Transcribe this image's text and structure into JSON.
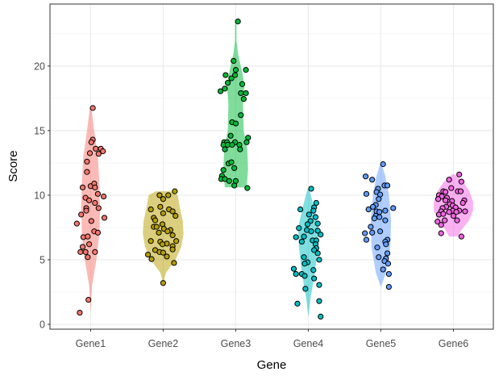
{
  "chart_data": {
    "type": "violin",
    "title": "",
    "xlabel": "Gene",
    "ylabel": "Score",
    "categories": [
      "Gene1",
      "Gene2",
      "Gene3",
      "Gene4",
      "Gene5",
      "Gene6"
    ],
    "yticks": [
      0,
      5,
      10,
      15,
      20
    ],
    "ylim": [
      -0.375,
      24.8
    ],
    "grid": true,
    "legend": "none",
    "point_color": "#000000",
    "series": [
      {
        "category": "Gene1",
        "color": "#F8766D",
        "violin": [
          [
            0.9,
            0
          ],
          [
            3,
            0.02
          ],
          [
            5,
            0.08
          ],
          [
            7,
            0.12
          ],
          [
            9,
            0.13
          ],
          [
            11,
            0.12
          ],
          [
            13,
            0.1
          ],
          [
            15,
            0.05
          ],
          [
            16.8,
            0.01
          ]
        ],
        "points": [
          [
            0.03,
            16.75
          ],
          [
            0.03,
            14.3
          ],
          [
            0.01,
            14.1
          ],
          [
            0.07,
            13.6
          ],
          [
            0.14,
            13.6
          ],
          [
            0.17,
            13.4
          ],
          [
            0.11,
            13.2
          ],
          [
            -0.01,
            13.25
          ],
          [
            -0.05,
            12.6
          ],
          [
            -0.05,
            11.8
          ],
          [
            -0.11,
            10.6
          ],
          [
            0,
            10.7
          ],
          [
            0.05,
            10.9
          ],
          [
            0.06,
            10.6
          ],
          [
            -0.07,
            9.8
          ],
          [
            -0.02,
            9.6
          ],
          [
            0.1,
            10.1
          ],
          [
            0.18,
            9.9
          ],
          [
            0.06,
            9.4
          ],
          [
            0.11,
            9.0
          ],
          [
            -0.06,
            9.0
          ],
          [
            -0.06,
            8.8
          ],
          [
            -0.13,
            8.5
          ],
          [
            -0.19,
            7.8
          ],
          [
            0.01,
            8.0
          ],
          [
            0.19,
            8.25
          ],
          [
            0.05,
            7.2
          ],
          [
            0.1,
            7.1
          ],
          [
            -0.1,
            6.75
          ],
          [
            -0.04,
            6.8
          ],
          [
            -0.02,
            6.2
          ],
          [
            -0.11,
            6.0
          ],
          [
            -0.14,
            5.6
          ],
          [
            -0.07,
            5.6
          ],
          [
            -0.04,
            5.2
          ],
          [
            0.06,
            5.6
          ],
          [
            -0.03,
            1.9
          ],
          [
            -0.15,
            0.9
          ]
        ]
      },
      {
        "category": "Gene2",
        "color": "#B79F00",
        "violin": [
          [
            3.2,
            0
          ],
          [
            4,
            0.04
          ],
          [
            5,
            0.17
          ],
          [
            6,
            0.25
          ],
          [
            7,
            0.28
          ],
          [
            8,
            0.27
          ],
          [
            9,
            0.23
          ],
          [
            10,
            0.2
          ],
          [
            10.3,
            0.1
          ]
        ],
        "points": [
          [
            0.16,
            10.3
          ],
          [
            -0.05,
            10.0
          ],
          [
            0,
            9.7
          ],
          [
            0.07,
            10.0
          ],
          [
            -0.17,
            8.9
          ],
          [
            -0.04,
            9.1
          ],
          [
            0,
            8.6
          ],
          [
            0.08,
            8.9
          ],
          [
            0.13,
            8.75
          ],
          [
            0.17,
            8.4
          ],
          [
            -0.13,
            8.25
          ],
          [
            -0.11,
            8.05
          ],
          [
            -0.01,
            7.75
          ],
          [
            -0.13,
            7.55
          ],
          [
            -0.09,
            7.55
          ],
          [
            0.01,
            7.4
          ],
          [
            0.1,
            7.3
          ],
          [
            0.06,
            7.2
          ],
          [
            0.13,
            6.9
          ],
          [
            -0.06,
            7.1
          ],
          [
            -0.17,
            6.45
          ],
          [
            -0.04,
            6.4
          ],
          [
            0.05,
            6.25
          ],
          [
            0.18,
            6.45
          ],
          [
            0.13,
            6.05
          ],
          [
            -0.01,
            6.2
          ],
          [
            -0.11,
            5.75
          ],
          [
            -0.05,
            5.6
          ],
          [
            0,
            5.55
          ],
          [
            0.13,
            5.8
          ],
          [
            -0.21,
            5.4
          ],
          [
            -0.16,
            5.05
          ],
          [
            0.05,
            5.25
          ],
          [
            0.15,
            4.75
          ],
          [
            0,
            3.2
          ]
        ]
      },
      {
        "category": "Gene3",
        "color": "#00BA38",
        "violin": [
          [
            10.6,
            0.15
          ],
          [
            12,
            0.17
          ],
          [
            13.5,
            0.16
          ],
          [
            15,
            0.11
          ],
          [
            17,
            0.1
          ],
          [
            18.5,
            0.12
          ],
          [
            19.5,
            0.09
          ],
          [
            21,
            0.03
          ],
          [
            22,
            0.01
          ],
          [
            23.5,
            0.01
          ]
        ],
        "points": [
          [
            0.03,
            23.45
          ],
          [
            -0.03,
            20.4
          ],
          [
            0,
            19.7
          ],
          [
            0.14,
            19.7
          ],
          [
            -0.14,
            19.3
          ],
          [
            -0.01,
            19.3
          ],
          [
            -0.06,
            19.05
          ],
          [
            -0.11,
            18.7
          ],
          [
            0.09,
            18.6
          ],
          [
            -0.15,
            18.25
          ],
          [
            -0.21,
            18.05
          ],
          [
            0.07,
            17.9
          ],
          [
            0.14,
            17.9
          ],
          [
            0.11,
            17.45
          ],
          [
            0.07,
            16.2
          ],
          [
            -0.05,
            15.65
          ],
          [
            0,
            15.55
          ],
          [
            -0.07,
            14.6
          ],
          [
            0.17,
            14.45
          ],
          [
            0.15,
            14.1
          ],
          [
            -0.16,
            14.1
          ],
          [
            -0.12,
            14.1
          ],
          [
            -0.01,
            14.1
          ],
          [
            -0.17,
            13.9
          ],
          [
            -0.11,
            13.9
          ],
          [
            -0.05,
            13.9
          ],
          [
            0.05,
            13.9
          ],
          [
            -0.15,
            13.55
          ],
          [
            0.06,
            13.55
          ],
          [
            -0.1,
            12.45
          ],
          [
            -0.06,
            12.55
          ],
          [
            -0.02,
            12.1
          ],
          [
            -0.17,
            11.95
          ],
          [
            -0.19,
            11.5
          ],
          [
            -0.2,
            11.25
          ],
          [
            -0.15,
            11.25
          ],
          [
            -0.09,
            11.1
          ],
          [
            0,
            11.1
          ],
          [
            -0.02,
            10.75
          ],
          [
            0.16,
            10.55
          ]
        ]
      },
      {
        "category": "Gene4",
        "color": "#00BFC4",
        "violin": [
          [
            0.6,
            0
          ],
          [
            2,
            0.03
          ],
          [
            4,
            0.09
          ],
          [
            6,
            0.13
          ],
          [
            7.5,
            0.14
          ],
          [
            9,
            0.08
          ],
          [
            10.5,
            0.01
          ]
        ],
        "points": [
          [
            0.04,
            10.5
          ],
          [
            0.11,
            9.4
          ],
          [
            0.08,
            9.05
          ],
          [
            -0.11,
            8.9
          ],
          [
            0.07,
            8.8
          ],
          [
            0.01,
            8.5
          ],
          [
            0.1,
            8.3
          ],
          [
            0.03,
            8.0
          ],
          [
            0.13,
            7.8
          ],
          [
            -0.01,
            7.75
          ],
          [
            -0.13,
            7.45
          ],
          [
            -0.02,
            7.3
          ],
          [
            0.04,
            7.2
          ],
          [
            0.13,
            7.25
          ],
          [
            0.17,
            6.95
          ],
          [
            -0.06,
            6.8
          ],
          [
            -0.17,
            6.75
          ],
          [
            0.06,
            6.5
          ],
          [
            0.11,
            6.5
          ],
          [
            0.1,
            6.2
          ],
          [
            -0.09,
            6.4
          ],
          [
            0.11,
            5.9
          ],
          [
            0.08,
            5.75
          ],
          [
            0.13,
            5.5
          ],
          [
            -0.06,
            5.2
          ],
          [
            0.15,
            5.0
          ],
          [
            -0.01,
            4.8
          ],
          [
            -0.05,
            4.7
          ],
          [
            -0.2,
            4.3
          ],
          [
            0.07,
            4.2
          ],
          [
            -0.09,
            3.9
          ],
          [
            -0.17,
            3.9
          ],
          [
            -0.05,
            3.75
          ],
          [
            0.08,
            3.55
          ],
          [
            0.15,
            3.05
          ],
          [
            -0.04,
            2.75
          ],
          [
            -0.15,
            1.6
          ],
          [
            0.15,
            1.8
          ],
          [
            0.17,
            0.6
          ]
        ]
      },
      {
        "category": "Gene5",
        "color": "#619CFF",
        "violin": [
          [
            2.9,
            0
          ],
          [
            4,
            0.07
          ],
          [
            6,
            0.13
          ],
          [
            8,
            0.14
          ],
          [
            10,
            0.11
          ],
          [
            11.5,
            0.06
          ],
          [
            12.4,
            0.01
          ]
        ],
        "points": [
          [
            0.03,
            12.4
          ],
          [
            -0.21,
            11.45
          ],
          [
            -0.12,
            11.2
          ],
          [
            0.05,
            10.75
          ],
          [
            0.09,
            10.75
          ],
          [
            -0.04,
            10.5
          ],
          [
            -0.06,
            10.25
          ],
          [
            -0.2,
            10.1
          ],
          [
            -0.01,
            10.05
          ],
          [
            -0.03,
            9.7
          ],
          [
            -0.07,
            9.25
          ],
          [
            -0.11,
            9.1
          ],
          [
            -0.17,
            8.9
          ],
          [
            0.17,
            9.0
          ],
          [
            0.06,
            8.8
          ],
          [
            -0.06,
            8.75
          ],
          [
            -0.02,
            8.7
          ],
          [
            -0.07,
            8.4
          ],
          [
            -0.02,
            8.3
          ],
          [
            -0.09,
            8.2
          ],
          [
            0.06,
            8.05
          ],
          [
            -0.14,
            7.55
          ],
          [
            -0.12,
            7.1
          ],
          [
            -0.22,
            7.05
          ],
          [
            -0.01,
            7.2
          ],
          [
            -0.2,
            6.55
          ],
          [
            0.09,
            6.55
          ],
          [
            0.06,
            6.4
          ],
          [
            0.07,
            6.2
          ],
          [
            -0.05,
            5.95
          ],
          [
            0.09,
            5.5
          ],
          [
            -0.03,
            5.2
          ],
          [
            0.07,
            5.1
          ],
          [
            0.05,
            4.9
          ],
          [
            0.1,
            4.7
          ],
          [
            0.03,
            4.25
          ],
          [
            0.11,
            3.9
          ],
          [
            0.11,
            2.9
          ]
        ]
      },
      {
        "category": "Gene6",
        "color": "#F564E3",
        "violin": [
          [
            6.8,
            0.06
          ],
          [
            7.3,
            0.11
          ],
          [
            8,
            0.21
          ],
          [
            8.8,
            0.27
          ],
          [
            9.5,
            0.27
          ],
          [
            10.3,
            0.22
          ],
          [
            10.9,
            0.15
          ],
          [
            11.3,
            0.08
          ],
          [
            11.6,
            0.02
          ]
        ],
        "points": [
          [
            0.08,
            11.6
          ],
          [
            -0.06,
            11.2
          ],
          [
            0.11,
            11.05
          ],
          [
            -0.03,
            10.55
          ],
          [
            0.06,
            10.3
          ],
          [
            0.1,
            10.3
          ],
          [
            -0.14,
            10.3
          ],
          [
            -0.11,
            10.25
          ],
          [
            -0.2,
            10.0
          ],
          [
            -0.16,
            9.9
          ],
          [
            -0.09,
            9.8
          ],
          [
            -0.21,
            9.7
          ],
          [
            -0.11,
            9.6
          ],
          [
            -0.02,
            9.55
          ],
          [
            0.15,
            9.6
          ],
          [
            0.13,
            9.4
          ],
          [
            -0.05,
            9.3
          ],
          [
            -0.01,
            9.2
          ],
          [
            -0.1,
            9.1
          ],
          [
            0.03,
            9.05
          ],
          [
            -0.15,
            9.0
          ],
          [
            -0.01,
            8.8
          ],
          [
            0.08,
            8.8
          ],
          [
            0.16,
            8.75
          ],
          [
            -0.17,
            8.75
          ],
          [
            -0.06,
            8.7
          ],
          [
            0.04,
            8.7
          ],
          [
            -0.2,
            8.5
          ],
          [
            -0.14,
            8.55
          ],
          [
            0,
            8.4
          ],
          [
            -0.12,
            8.05
          ],
          [
            -0.22,
            7.95
          ],
          [
            0.05,
            8.05
          ],
          [
            -0.17,
            7.7
          ],
          [
            -0.17,
            7.05
          ],
          [
            0.11,
            6.8
          ]
        ]
      }
    ]
  }
}
